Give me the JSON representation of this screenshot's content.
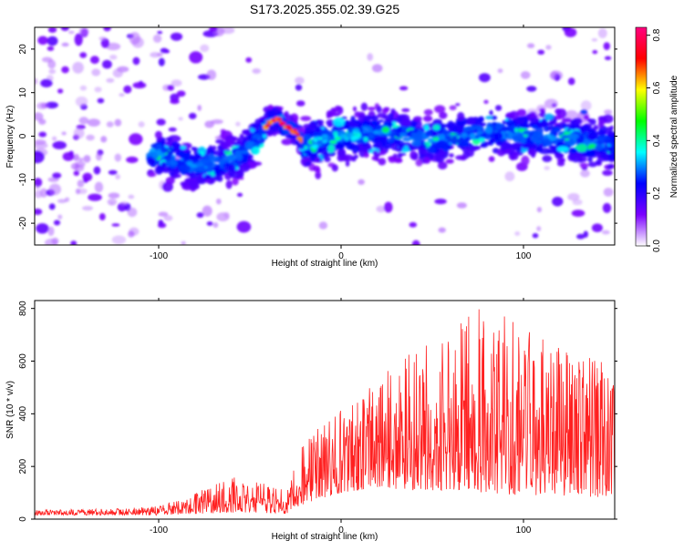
{
  "page_title": "S173.2025.355.02.39.G25",
  "chart_data": [
    {
      "type": "heatmap",
      "xlabel": "Height of straight line (km)",
      "ylabel": "Frequency (Hz)",
      "xlim": [
        -168,
        150
      ],
      "ylim": [
        -25,
        25
      ],
      "xticks": [
        -100,
        0,
        100
      ],
      "yticks": [
        -20,
        -10,
        0,
        10,
        20
      ],
      "xtick_labels": [
        "-100",
        "0",
        "100"
      ],
      "ytick_labels": [
        "-20",
        "-10",
        "0",
        "10",
        "20"
      ],
      "colorbar": {
        "label": "Normalized spectral amplitude",
        "range": [
          0,
          0.83
        ],
        "ticks": [
          0,
          0.2,
          0.4,
          0.6,
          0.8
        ],
        "tick_labels": [
          "0.0",
          "0.2",
          "0.4",
          "0.6",
          "0.8"
        ],
        "colors": [
          "#ffffff",
          "#7b00ff",
          "#0000ff",
          "#00ffff",
          "#00ff00",
          "#ffff00",
          "#ff0000",
          "#ff0080"
        ]
      },
      "ridge": [
        {
          "x": -100,
          "y": -4
        },
        {
          "x": -80,
          "y": -7
        },
        {
          "x": -55,
          "y": -5
        },
        {
          "x": -45,
          "y": 0
        },
        {
          "x": -40,
          "y": 3
        },
        {
          "x": -35,
          "y": 4
        },
        {
          "x": -30,
          "y": 2
        },
        {
          "x": -25,
          "y": 1
        },
        {
          "x": -20,
          "y": -2
        },
        {
          "x": -10,
          "y": -1
        },
        {
          "x": 0,
          "y": 0
        },
        {
          "x": 20,
          "y": 1
        },
        {
          "x": 50,
          "y": -1
        },
        {
          "x": 80,
          "y": 1
        },
        {
          "x": 110,
          "y": 0
        },
        {
          "x": 150,
          "y": -2
        }
      ]
    },
    {
      "type": "line",
      "xlabel": "Height of straight line (km)",
      "ylabel": "SNR (10 * v/v)",
      "xlim": [
        -168,
        150
      ],
      "ylim": [
        0,
        830
      ],
      "xticks": [
        -100,
        0,
        100
      ],
      "yticks": [
        0,
        200,
        400,
        600,
        800
      ],
      "xtick_labels": [
        "-100",
        "0",
        "100"
      ],
      "ytick_labels": [
        "0",
        "200",
        "400",
        "600",
        "800"
      ],
      "line_color": "#ff2020",
      "envelope": [
        {
          "x": -168,
          "base": 15,
          "peak": 35
        },
        {
          "x": -120,
          "base": 15,
          "peak": 40
        },
        {
          "x": -100,
          "base": 15,
          "peak": 50
        },
        {
          "x": -80,
          "base": 20,
          "peak": 100
        },
        {
          "x": -60,
          "base": 25,
          "peak": 160
        },
        {
          "x": -45,
          "base": 25,
          "peak": 140
        },
        {
          "x": -30,
          "base": 20,
          "peak": 110
        },
        {
          "x": -20,
          "base": 60,
          "peak": 300
        },
        {
          "x": 0,
          "base": 100,
          "peak": 420
        },
        {
          "x": 20,
          "base": 120,
          "peak": 520
        },
        {
          "x": 40,
          "base": 110,
          "peak": 680
        },
        {
          "x": 60,
          "base": 110,
          "peak": 740
        },
        {
          "x": 80,
          "base": 100,
          "peak": 820
        },
        {
          "x": 100,
          "base": 90,
          "peak": 720
        },
        {
          "x": 120,
          "base": 90,
          "peak": 660
        },
        {
          "x": 150,
          "base": 80,
          "peak": 580
        }
      ],
      "sample_count": 1300
    }
  ]
}
